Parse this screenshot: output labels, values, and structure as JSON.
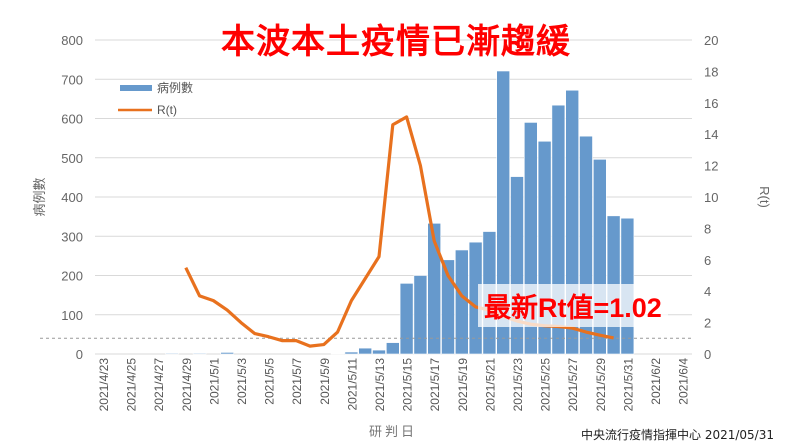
{
  "title": "本波本土疫情已漸趨緩",
  "annotation": "最新Rt值=1.02",
  "source": "中央流行疫情指揮中心 2021/05/31",
  "colors": {
    "bars": "#6699cc",
    "line": "#e8711e",
    "title": "#ff0000",
    "grid": "#d9d9d9"
  },
  "chart_data": {
    "type": "bar+line",
    "xlabel": "研判日",
    "ylabel_left": "病例數",
    "ylabel_right": "R(t)",
    "ylim_left": [
      0,
      800
    ],
    "ylim_right": [
      0,
      20
    ],
    "yticks_left": [
      0,
      100,
      200,
      300,
      400,
      500,
      600,
      700,
      800
    ],
    "yticks_right": [
      0,
      2,
      4,
      6,
      8,
      10,
      12,
      14,
      16,
      18,
      20
    ],
    "grid": true,
    "legend_placement": "top-left",
    "reference_line": {
      "axis": "right",
      "value": 1,
      "style": "dashed"
    },
    "x_ticks": [
      "2021/4/23",
      "2021/4/25",
      "2021/4/27",
      "2021/4/29",
      "2021/5/1",
      "2021/5/3",
      "2021/5/5",
      "2021/5/7",
      "2021/5/9",
      "2021/5/11",
      "2021/5/13",
      "2021/5/15",
      "2021/5/17",
      "2021/5/19",
      "2021/5/21",
      "2021/5/23",
      "2021/5/25",
      "2021/5/27",
      "2021/5/29",
      "2021/5/31",
      "2021/6/2",
      "2021/6/4"
    ],
    "series": [
      {
        "name": "病例數",
        "type": "bar",
        "axis": "left",
        "x": [
          "2021/4/28",
          "2021/4/30",
          "2021/5/2",
          "2021/5/10",
          "2021/5/11",
          "2021/5/12",
          "2021/5/13",
          "2021/5/14",
          "2021/5/15",
          "2021/5/16",
          "2021/5/17",
          "2021/5/18",
          "2021/5/19",
          "2021/5/20",
          "2021/5/21",
          "2021/5/22",
          "2021/5/23",
          "2021/5/24",
          "2021/5/25",
          "2021/5/26",
          "2021/5/27",
          "2021/5/28",
          "2021/5/29",
          "2021/5/30",
          "2021/5/31"
        ],
        "values": [
          2,
          2,
          4,
          1,
          5,
          15,
          10,
          29,
          180,
          200,
          333,
          240,
          265,
          285,
          312,
          721,
          452,
          590,
          542,
          634,
          672,
          555,
          496,
          352,
          346
        ]
      },
      {
        "name": "R(t)",
        "type": "line",
        "axis": "right",
        "x": [
          "2021/4/29",
          "2021/4/30",
          "2021/5/1",
          "2021/5/2",
          "2021/5/3",
          "2021/5/4",
          "2021/5/5",
          "2021/5/6",
          "2021/5/7",
          "2021/5/8",
          "2021/5/9",
          "2021/5/10",
          "2021/5/11",
          "2021/5/12",
          "2021/5/13",
          "2021/5/14",
          "2021/5/15",
          "2021/5/16",
          "2021/5/17",
          "2021/5/18",
          "2021/5/19",
          "2021/5/20",
          "2021/5/21",
          "2021/5/22",
          "2021/5/23",
          "2021/5/24",
          "2021/5/25",
          "2021/5/26",
          "2021/5/27",
          "2021/5/28",
          "2021/5/29",
          "2021/5/30"
        ],
        "values": [
          5.5,
          3.7,
          3.4,
          2.8,
          2.0,
          1.3,
          1.1,
          0.85,
          0.85,
          0.5,
          0.6,
          1.4,
          3.4,
          4.8,
          6.2,
          14.6,
          15.1,
          12.0,
          7.2,
          5.0,
          3.7,
          3.0,
          2.8,
          2.4,
          2.1,
          1.9,
          1.8,
          1.75,
          1.65,
          1.4,
          1.2,
          1.02
        ]
      }
    ]
  }
}
